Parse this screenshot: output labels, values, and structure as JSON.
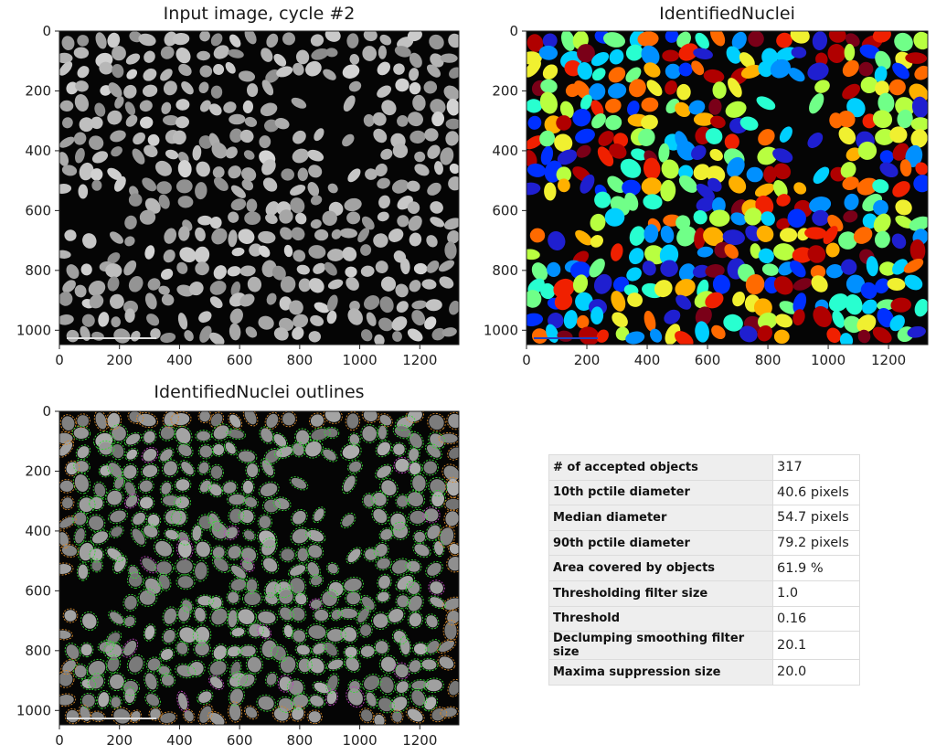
{
  "panels": {
    "input_image": {
      "title": "Input image, cycle #2"
    },
    "identified_nuclei": {
      "title": "IdentifiedNuclei"
    },
    "outlines": {
      "title": "IdentifiedNuclei outlines"
    }
  },
  "axes": {
    "x_ticks": [
      "0",
      "200",
      "400",
      "600",
      "800",
      "1000",
      "1200"
    ],
    "y_ticks": [
      "0",
      "200",
      "400",
      "600",
      "800",
      "1000"
    ],
    "x_range": [
      0,
      1330
    ],
    "y_range": [
      0,
      1048
    ]
  },
  "measurements": [
    {
      "label": "# of accepted objects",
      "value": "317"
    },
    {
      "label": "10th pctile diameter",
      "value": "40.6 pixels"
    },
    {
      "label": "Median diameter",
      "value": "54.7 pixels"
    },
    {
      "label": "90th pctile diameter",
      "value": "79.2 pixels"
    },
    {
      "label": "Area covered by objects",
      "value": "61.9 %"
    },
    {
      "label": "Thresholding filter size",
      "value": "1.0"
    },
    {
      "label": "Threshold",
      "value": "0.16"
    },
    {
      "label": "Declumping smoothing filter size",
      "value": "20.1"
    },
    {
      "label": "Maxima suppression size",
      "value": "20.0"
    }
  ],
  "colors": {
    "label_palette": [
      "#1f1fd0",
      "#0030ff",
      "#0090ff",
      "#00d0ff",
      "#28ffd0",
      "#70ff88",
      "#b8ff40",
      "#f0f030",
      "#ffb000",
      "#ff6a00",
      "#f02000",
      "#b00000",
      "#7a0018"
    ],
    "outline_green": "#33dd33",
    "outline_orange": "#d88a2a",
    "outline_magenta": "#c040c0",
    "scale_bar": "#dddddd"
  }
}
